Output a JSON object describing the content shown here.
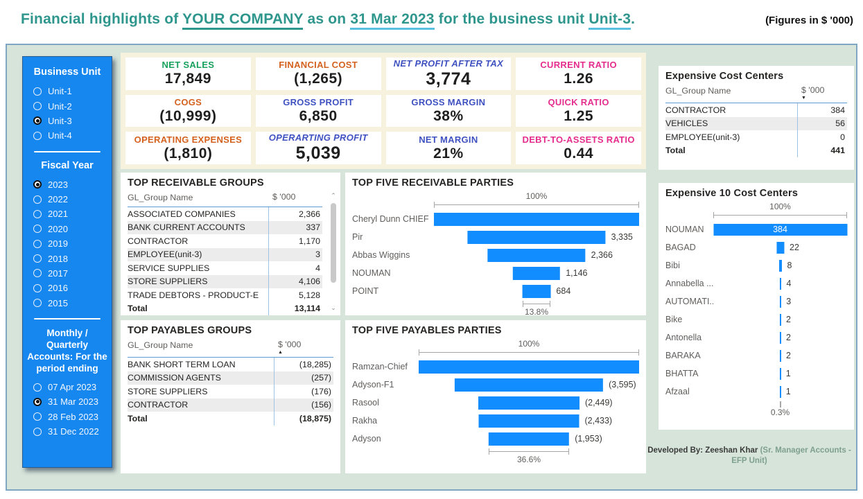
{
  "title": {
    "prefix": "Financial highlights of ",
    "company": "YOUR COMPANY",
    "as_on": " as on ",
    "date": "31 Mar 2023",
    "for_unit": " for the business unit ",
    "unit": "Unit-3",
    "dot": ".",
    "figures_note": "(Figures in $ '000)"
  },
  "sidebar": {
    "business_unit": {
      "heading": "Business Unit",
      "options": [
        {
          "label": "Unit-1",
          "selected": false
        },
        {
          "label": "Unit-2",
          "selected": false
        },
        {
          "label": "Unit-3",
          "selected": true
        },
        {
          "label": "Unit-4",
          "selected": false
        }
      ]
    },
    "fiscal_year": {
      "heading": "Fiscal Year",
      "options": [
        {
          "label": "2023",
          "selected": true
        },
        {
          "label": "2022",
          "selected": false
        },
        {
          "label": "2021",
          "selected": false
        },
        {
          "label": "2020",
          "selected": false
        },
        {
          "label": "2019",
          "selected": false
        },
        {
          "label": "2018",
          "selected": false
        },
        {
          "label": "2017",
          "selected": false
        },
        {
          "label": "2016",
          "selected": false
        },
        {
          "label": "2015",
          "selected": false
        }
      ]
    },
    "period": {
      "heading": "Monthly / Quarterly Accounts: For the period ending",
      "options": [
        {
          "label": "07 Apr 2023",
          "selected": false
        },
        {
          "label": "31 Mar 2023",
          "selected": true
        },
        {
          "label": "28 Feb 2023",
          "selected": false
        },
        {
          "label": "31 Dec 2022",
          "selected": false
        }
      ]
    }
  },
  "kpis": [
    {
      "label": "NET SALES",
      "value": "17,849",
      "color": "green",
      "italic": false,
      "big": false
    },
    {
      "label": "FINANCIAL COST",
      "value": "(1,265)",
      "color": "orange",
      "italic": false,
      "big": false
    },
    {
      "label": "NET PROFIT AFTER TAX",
      "value": "3,774",
      "color": "blue",
      "italic": true,
      "big": true
    },
    {
      "label": "CURRENT RATIO",
      "value": "1.26",
      "color": "pink",
      "italic": false,
      "big": false
    },
    {
      "label": "COGS",
      "value": "(10,999)",
      "color": "orange",
      "italic": false,
      "big": false
    },
    {
      "label": "GROSS PROFIT",
      "value": "6,850",
      "color": "blue",
      "italic": false,
      "big": false
    },
    {
      "label": "GROSS MARGIN",
      "value": "38%",
      "color": "blue",
      "italic": false,
      "big": false
    },
    {
      "label": "QUICK RATIO",
      "value": "1.25",
      "color": "pink",
      "italic": false,
      "big": false
    },
    {
      "label": "OPERATING EXPENSES",
      "value": "(1,810)",
      "color": "orange",
      "italic": false,
      "big": false
    },
    {
      "label": "OPERARTING PROFIT",
      "value": "5,039",
      "color": "blue",
      "italic": true,
      "big": true
    },
    {
      "label": "NET MARGIN",
      "value": "21%",
      "color": "blue",
      "italic": false,
      "big": false
    },
    {
      "label": "DEBT-TO-ASSETS RATIO",
      "value": "0.44",
      "color": "pink",
      "italic": false,
      "big": false
    }
  ],
  "receivable_groups": {
    "title": "TOP RECEIVABLE GROUPS",
    "columns": [
      "GL_Group Name",
      "$ '000"
    ],
    "sort": null,
    "rows": [
      {
        "name": "ASSOCIATED COMPANIES",
        "value": "2,366"
      },
      {
        "name": "BANK CURRENT ACCOUNTS",
        "value": "337"
      },
      {
        "name": "CONTRACTOR",
        "value": "1,170"
      },
      {
        "name": "EMPLOYEE(unit-3)",
        "value": "3"
      },
      {
        "name": "SERVICE SUPPLIES",
        "value": "4"
      },
      {
        "name": "STORE SUPPLIERS",
        "value": "4,106"
      },
      {
        "name": "TRADE DEBTORS - PRODUCT-E",
        "value": "5,128"
      },
      {
        "name": "Total",
        "value": "13,114",
        "bold": true
      }
    ]
  },
  "payables_groups": {
    "title": "TOP PAYABLES GROUPS",
    "columns": [
      "GL_Group Name",
      "$ '000"
    ],
    "sort": "asc",
    "rows": [
      {
        "name": "BANK SHORT TERM LOAN",
        "value": "(18,285)"
      },
      {
        "name": "COMMISSION AGENTS",
        "value": "(257)"
      },
      {
        "name": "STORE SUPPLIERS",
        "value": "(176)"
      },
      {
        "name": "CONTRACTOR",
        "value": "(156)"
      },
      {
        "name": "Total",
        "value": "(18,875)",
        "bold": true
      }
    ]
  },
  "expensive_cost_centers": {
    "title": "Expensive Cost Centers",
    "columns": [
      "GL_Group Name",
      "$ '000"
    ],
    "sort": "desc",
    "rows": [
      {
        "name": "CONTRACTOR",
        "value": "384"
      },
      {
        "name": "VEHICLES",
        "value": "56"
      },
      {
        "name": "EMPLOYEE(unit-3)",
        "value": "0"
      },
      {
        "name": "Total",
        "value": "441",
        "bold": true
      }
    ]
  },
  "receivable_parties": {
    "title": "TOP FIVE RECEIVABLE PARTIES",
    "type": "funnel",
    "top_label": "100%",
    "bottom_label": "13.8%",
    "rows": [
      {
        "category": "Cheryl Dunn CHIEF",
        "value": 4957,
        "display": ""
      },
      {
        "category": "Pir",
        "value": 3335,
        "display": "3,335"
      },
      {
        "category": "Abbas Wiggins",
        "value": 2366,
        "display": "2,366"
      },
      {
        "category": "NOUMAN",
        "value": 1146,
        "display": "1,146"
      },
      {
        "category": "POINT",
        "value": 684,
        "display": "684"
      }
    ]
  },
  "payables_parties": {
    "title": "TOP FIVE PAYABLES PARTIES",
    "type": "funnel",
    "top_label": "100%",
    "bottom_label": "36.6%",
    "rows": [
      {
        "category": "Ramzan-Chief",
        "value": 5336,
        "display": ""
      },
      {
        "category": "Adyson-F1",
        "value": 3595,
        "display": "(3,595)"
      },
      {
        "category": "Rasool",
        "value": 2449,
        "display": "(2,449)"
      },
      {
        "category": "Rakha",
        "value": 2433,
        "display": "(2,433)"
      },
      {
        "category": "Adyson",
        "value": 1953,
        "display": "(1,953)"
      }
    ]
  },
  "expensive_10": {
    "title": "Expensive 10 Cost Centers",
    "type": "funnel",
    "top_label": "100%",
    "bottom_label": "0.3%",
    "rows": [
      {
        "category": "NOUMAN",
        "value": 384,
        "display": "384",
        "inside": true
      },
      {
        "category": "BAGAD",
        "value": 22,
        "display": "22"
      },
      {
        "category": "Bibi",
        "value": 8,
        "display": "8"
      },
      {
        "category": "Annabella ...",
        "value": 4,
        "display": "4"
      },
      {
        "category": "AUTOMATI...",
        "value": 3,
        "display": "3"
      },
      {
        "category": "Bike",
        "value": 2,
        "display": "2"
      },
      {
        "category": "Antonella",
        "value": 2,
        "display": "2"
      },
      {
        "category": "BARAKA",
        "value": 2,
        "display": "2"
      },
      {
        "category": "BHATTA",
        "value": 1,
        "display": "1"
      },
      {
        "category": "Afzaal",
        "value": 1,
        "display": "1"
      }
    ]
  },
  "footer": {
    "credit_bold": "Developed By:  Zeeshan Khar",
    "credit_role": "(Sr. Manager Accounts - EFP Unit)"
  },
  "colors": {
    "funnel_bar": "#118DFF",
    "sidebar_blue": "#1787F0",
    "canvas_mint": "#D6E4DA",
    "kpi_cream": "#F7F2DD",
    "title_teal": "#2E968C",
    "kpi_green": "#18A15D",
    "kpi_orange": "#D4611E",
    "kpi_blue": "#3F51C1",
    "kpi_pink": "#E52D8D"
  }
}
